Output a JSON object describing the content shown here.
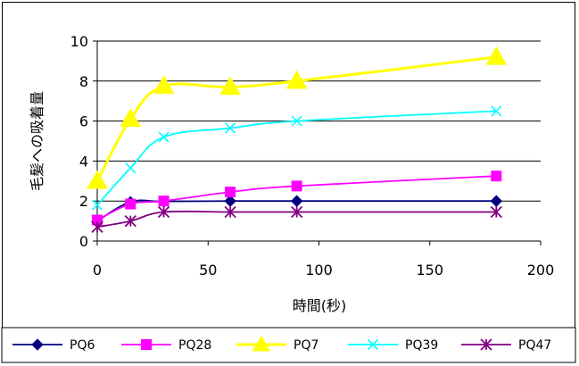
{
  "chart_data": {
    "type": "line",
    "title": "",
    "xlabel": "時間(秒)",
    "ylabel": "毛髪への吸着量",
    "xlim": [
      0,
      200
    ],
    "ylim": [
      0,
      10
    ],
    "xticks": [
      0,
      50,
      100,
      150,
      200
    ],
    "yticks": [
      0,
      2,
      4,
      6,
      8,
      10
    ],
    "grid": "horizontal",
    "legend_position": "bottom",
    "series": [
      {
        "name": "PQ6",
        "color": "#000080",
        "marker": "diamond",
        "x": [
          0,
          15,
          30,
          60,
          90,
          180
        ],
        "y": [
          1.0,
          1.95,
          1.98,
          2.0,
          2.0,
          2.0
        ]
      },
      {
        "name": "PQ28",
        "color": "#FF00FF",
        "marker": "square",
        "x": [
          0,
          15,
          30,
          60,
          90,
          180
        ],
        "y": [
          1.05,
          1.85,
          2.0,
          2.45,
          2.75,
          3.25
        ]
      },
      {
        "name": "PQ7",
        "color": "#FFFF00",
        "marker": "triangle",
        "x": [
          0,
          15,
          30,
          60,
          90,
          180
        ],
        "y": [
          3.0,
          6.1,
          7.75,
          7.7,
          8.0,
          9.2
        ]
      },
      {
        "name": "PQ39",
        "color": "#00FFFF",
        "marker": "x",
        "x": [
          0,
          15,
          30,
          60,
          90,
          180
        ],
        "y": [
          1.8,
          3.65,
          5.2,
          5.65,
          6.0,
          6.5
        ]
      },
      {
        "name": "PQ47",
        "color": "#800080",
        "marker": "star",
        "x": [
          0,
          15,
          30,
          60,
          90,
          180
        ],
        "y": [
          0.7,
          1.0,
          1.45,
          1.45,
          1.45,
          1.45
        ]
      }
    ]
  }
}
